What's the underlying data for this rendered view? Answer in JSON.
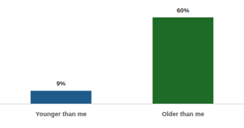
{
  "chart_data": {
    "type": "bar",
    "categories": [
      "Younger than me",
      "Older than me"
    ],
    "values": [
      9,
      60
    ],
    "value_labels": [
      "9%",
      "60%"
    ],
    "colors": [
      "#1f5b8a",
      "#1e6b27"
    ],
    "ylim": [
      0,
      60
    ],
    "data_labels": true,
    "tick_labels": "x",
    "grid": false
  }
}
